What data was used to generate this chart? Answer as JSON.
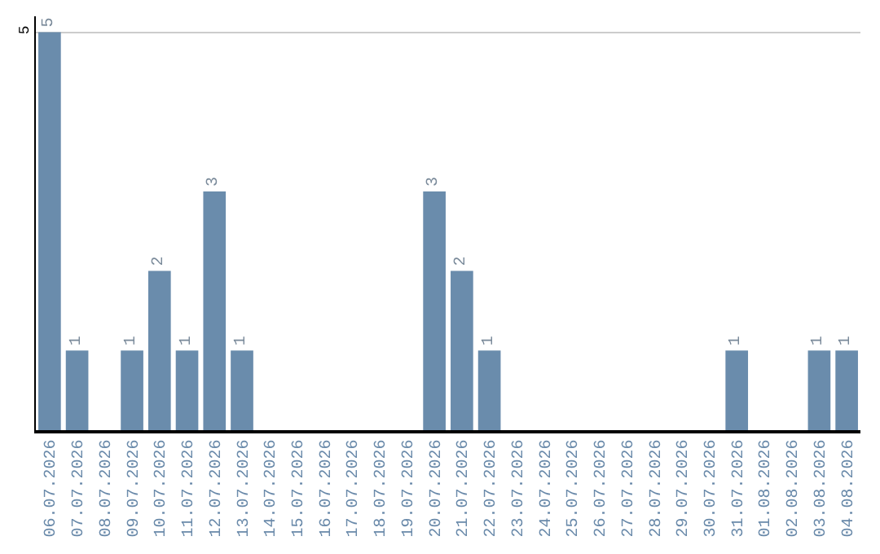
{
  "chart_data": {
    "type": "bar",
    "categories": [
      "06.07.2026",
      "07.07.2026",
      "08.07.2026",
      "09.07.2026",
      "10.07.2026",
      "11.07.2026",
      "12.07.2026",
      "13.07.2026",
      "14.07.2026",
      "15.07.2026",
      "16.07.2026",
      "17.07.2026",
      "18.07.2026",
      "19.07.2026",
      "20.07.2026",
      "21.07.2026",
      "22.07.2026",
      "23.07.2026",
      "24.07.2026",
      "25.07.2026",
      "26.07.2026",
      "27.07.2026",
      "28.07.2026",
      "29.07.2026",
      "30.07.2026",
      "31.07.2026",
      "01.08.2026",
      "02.08.2026",
      "03.08.2026",
      "04.08.2026"
    ],
    "values": [
      5,
      1,
      0,
      1,
      2,
      1,
      3,
      1,
      0,
      0,
      0,
      0,
      0,
      0,
      3,
      2,
      1,
      0,
      0,
      0,
      0,
      0,
      0,
      0,
      0,
      1,
      0,
      0,
      1,
      1
    ],
    "value_labels": [
      "5",
      "1",
      null,
      "1",
      "2",
      "1",
      "3",
      "1",
      null,
      null,
      null,
      null,
      null,
      null,
      "3",
      "2",
      "1",
      null,
      null,
      null,
      null,
      null,
      null,
      null,
      null,
      "1",
      null,
      null,
      "1",
      "1"
    ],
    "color": "#6a8cac",
    "ylim": [
      0,
      5.2
    ],
    "yticks": [
      5
    ],
    "grid": "y"
  }
}
